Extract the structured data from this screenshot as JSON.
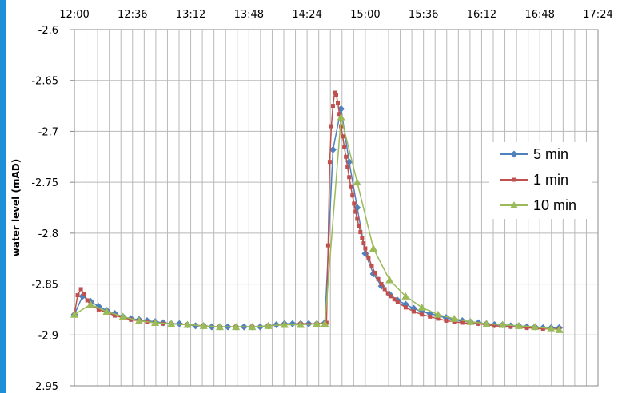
{
  "chart_data": {
    "type": "line",
    "title": "",
    "xlabel": "",
    "ylabel": "water level (mAD)",
    "x_ticks": [
      "12:00",
      "12:36",
      "13:12",
      "13:48",
      "14:24",
      "15:00",
      "15:36",
      "16:12",
      "16:48",
      "17:24"
    ],
    "y_ticks": [
      "-2.6",
      "-2.65",
      "-2.7",
      "-2.75",
      "-2.8",
      "-2.85",
      "-2.9",
      "-2.95"
    ],
    "xlim": [
      "12:00",
      "17:24"
    ],
    "ylim": [
      -2.95,
      -2.6
    ],
    "x_axis_position": "top",
    "grid": true,
    "legend_position": "right",
    "series": [
      {
        "name": "5 min",
        "color": "#4f81bd",
        "marker": "diamond",
        "points": [
          [
            "12:00",
            -2.88
          ],
          [
            "12:05",
            -2.862
          ],
          [
            "12:10",
            -2.867
          ],
          [
            "12:15",
            -2.872
          ],
          [
            "12:20",
            -2.876
          ],
          [
            "12:25",
            -2.879
          ],
          [
            "12:30",
            -2.882
          ],
          [
            "12:35",
            -2.884
          ],
          [
            "12:40",
            -2.885
          ],
          [
            "12:45",
            -2.886
          ],
          [
            "12:50",
            -2.887
          ],
          [
            "12:55",
            -2.888
          ],
          [
            "13:00",
            -2.889
          ],
          [
            "13:05",
            -2.889
          ],
          [
            "13:10",
            -2.89
          ],
          [
            "13:15",
            -2.891
          ],
          [
            "13:20",
            -2.891
          ],
          [
            "13:25",
            -2.892
          ],
          [
            "13:30",
            -2.892
          ],
          [
            "13:35",
            -2.892
          ],
          [
            "13:40",
            -2.892
          ],
          [
            "13:45",
            -2.892
          ],
          [
            "13:50",
            -2.892
          ],
          [
            "13:55",
            -2.892
          ],
          [
            "14:00",
            -2.891
          ],
          [
            "14:05",
            -2.89
          ],
          [
            "14:10",
            -2.889
          ],
          [
            "14:15",
            -2.889
          ],
          [
            "14:20",
            -2.889
          ],
          [
            "14:25",
            -2.889
          ],
          [
            "14:30",
            -2.889
          ],
          [
            "14:35",
            -2.888
          ],
          [
            "14:40",
            -2.718
          ],
          [
            "14:45",
            -2.678
          ],
          [
            "14:50",
            -2.73
          ],
          [
            "14:55",
            -2.775
          ],
          [
            "15:00",
            -2.82
          ],
          [
            "15:05",
            -2.84
          ],
          [
            "15:10",
            -2.852
          ],
          [
            "15:15",
            -2.86
          ],
          [
            "15:20",
            -2.866
          ],
          [
            "15:25",
            -2.87
          ],
          [
            "15:30",
            -2.874
          ],
          [
            "15:35",
            -2.877
          ],
          [
            "15:40",
            -2.879
          ],
          [
            "15:45",
            -2.881
          ],
          [
            "15:50",
            -2.883
          ],
          [
            "15:55",
            -2.885
          ],
          [
            "16:00",
            -2.886
          ],
          [
            "16:05",
            -2.887
          ],
          [
            "16:10",
            -2.888
          ],
          [
            "16:15",
            -2.889
          ],
          [
            "16:20",
            -2.89
          ],
          [
            "16:25",
            -2.89
          ],
          [
            "16:30",
            -2.891
          ],
          [
            "16:35",
            -2.891
          ],
          [
            "16:40",
            -2.892
          ],
          [
            "16:45",
            -2.892
          ],
          [
            "16:50",
            -2.893
          ],
          [
            "16:55",
            -2.893
          ],
          [
            "17:00",
            -2.893
          ]
        ]
      },
      {
        "name": "1 min",
        "color": "#c0504d",
        "marker": "square",
        "points": [
          [
            "12:00",
            -2.88
          ],
          [
            "12:02",
            -2.861
          ],
          [
            "12:04",
            -2.855
          ],
          [
            "12:06",
            -2.86
          ],
          [
            "12:08",
            -2.866
          ],
          [
            "12:10",
            -2.87
          ],
          [
            "12:15",
            -2.875
          ],
          [
            "12:20",
            -2.878
          ],
          [
            "12:25",
            -2.881
          ],
          [
            "12:30",
            -2.883
          ],
          [
            "12:35",
            -2.885
          ],
          [
            "12:40",
            -2.886
          ],
          [
            "12:45",
            -2.887
          ],
          [
            "12:50",
            -2.888
          ],
          [
            "12:55",
            -2.889
          ],
          [
            "13:00",
            -2.889
          ],
          [
            "13:10",
            -2.89
          ],
          [
            "13:20",
            -2.891
          ],
          [
            "13:30",
            -2.892
          ],
          [
            "13:40",
            -2.892
          ],
          [
            "13:50",
            -2.892
          ],
          [
            "14:00",
            -2.891
          ],
          [
            "14:10",
            -2.89
          ],
          [
            "14:20",
            -2.889
          ],
          [
            "14:30",
            -2.889
          ],
          [
            "14:36",
            -2.888
          ],
          [
            "14:37",
            -2.812
          ],
          [
            "14:38",
            -2.73
          ],
          [
            "14:39",
            -2.695
          ],
          [
            "14:40",
            -2.675
          ],
          [
            "14:41",
            -2.662
          ],
          [
            "14:42",
            -2.664
          ],
          [
            "14:43",
            -2.672
          ],
          [
            "14:44",
            -2.683
          ],
          [
            "14:45",
            -2.695
          ],
          [
            "14:46",
            -2.705
          ],
          [
            "14:47",
            -2.715
          ],
          [
            "14:48",
            -2.725
          ],
          [
            "14:49",
            -2.735
          ],
          [
            "14:50",
            -2.745
          ],
          [
            "14:51",
            -2.754
          ],
          [
            "14:52",
            -2.763
          ],
          [
            "14:53",
            -2.771
          ],
          [
            "14:54",
            -2.779
          ],
          [
            "14:55",
            -2.786
          ],
          [
            "14:56",
            -2.793
          ],
          [
            "14:57",
            -2.799
          ],
          [
            "14:58",
            -2.805
          ],
          [
            "14:59",
            -2.81
          ],
          [
            "15:00",
            -2.815
          ],
          [
            "15:02",
            -2.824
          ],
          [
            "15:04",
            -2.832
          ],
          [
            "15:06",
            -2.839
          ],
          [
            "15:08",
            -2.845
          ],
          [
            "15:10",
            -2.85
          ],
          [
            "15:12",
            -2.855
          ],
          [
            "15:14",
            -2.859
          ],
          [
            "15:16",
            -2.862
          ],
          [
            "15:18",
            -2.865
          ],
          [
            "15:20",
            -2.868
          ],
          [
            "15:25",
            -2.873
          ],
          [
            "15:30",
            -2.877
          ],
          [
            "15:35",
            -2.88
          ],
          [
            "15:40",
            -2.882
          ],
          [
            "15:45",
            -2.884
          ],
          [
            "15:50",
            -2.886
          ],
          [
            "15:55",
            -2.887
          ],
          [
            "16:00",
            -2.888
          ],
          [
            "16:10",
            -2.889
          ],
          [
            "16:20",
            -2.891
          ],
          [
            "16:30",
            -2.892
          ],
          [
            "16:40",
            -2.893
          ],
          [
            "16:50",
            -2.894
          ],
          [
            "17:00",
            -2.894
          ]
        ]
      },
      {
        "name": "10 min",
        "color": "#9bbb59",
        "marker": "triangle",
        "points": [
          [
            "12:00",
            -2.88
          ],
          [
            "12:10",
            -2.87
          ],
          [
            "12:20",
            -2.877
          ],
          [
            "12:30",
            -2.882
          ],
          [
            "12:40",
            -2.886
          ],
          [
            "12:50",
            -2.888
          ],
          [
            "13:00",
            -2.889
          ],
          [
            "13:10",
            -2.89
          ],
          [
            "13:20",
            -2.891
          ],
          [
            "13:30",
            -2.892
          ],
          [
            "13:40",
            -2.892
          ],
          [
            "13:50",
            -2.892
          ],
          [
            "14:00",
            -2.891
          ],
          [
            "14:10",
            -2.89
          ],
          [
            "14:20",
            -2.89
          ],
          [
            "14:30",
            -2.889
          ],
          [
            "14:35",
            -2.889
          ],
          [
            "14:45",
            -2.686
          ],
          [
            "14:55",
            -2.75
          ],
          [
            "15:05",
            -2.815
          ],
          [
            "15:15",
            -2.846
          ],
          [
            "15:25",
            -2.862
          ],
          [
            "15:35",
            -2.873
          ],
          [
            "15:45",
            -2.88
          ],
          [
            "15:55",
            -2.884
          ],
          [
            "16:05",
            -2.887
          ],
          [
            "16:15",
            -2.889
          ],
          [
            "16:25",
            -2.89
          ],
          [
            "16:35",
            -2.891
          ],
          [
            "16:45",
            -2.892
          ],
          [
            "16:55",
            -2.894
          ],
          [
            "17:00",
            -2.895
          ]
        ]
      }
    ]
  }
}
